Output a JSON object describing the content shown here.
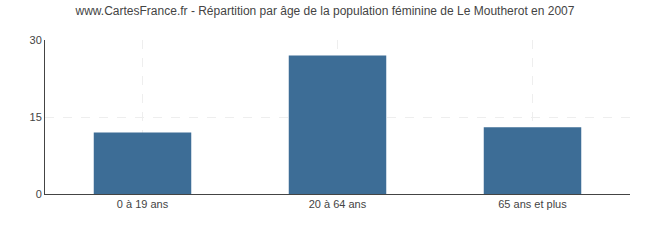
{
  "chart_data": {
    "type": "bar",
    "title": "www.CartesFrance.fr - Répartition par âge de la population féminine de Le Moutherot en 2007",
    "categories": [
      "0 à 19 ans",
      "20 à 64 ans",
      "65 ans et plus"
    ],
    "values": [
      12,
      27,
      13
    ],
    "color": "#3d6d96",
    "ylim": [
      0,
      30
    ],
    "yticks": [
      0,
      15,
      30
    ],
    "grid": true
  }
}
